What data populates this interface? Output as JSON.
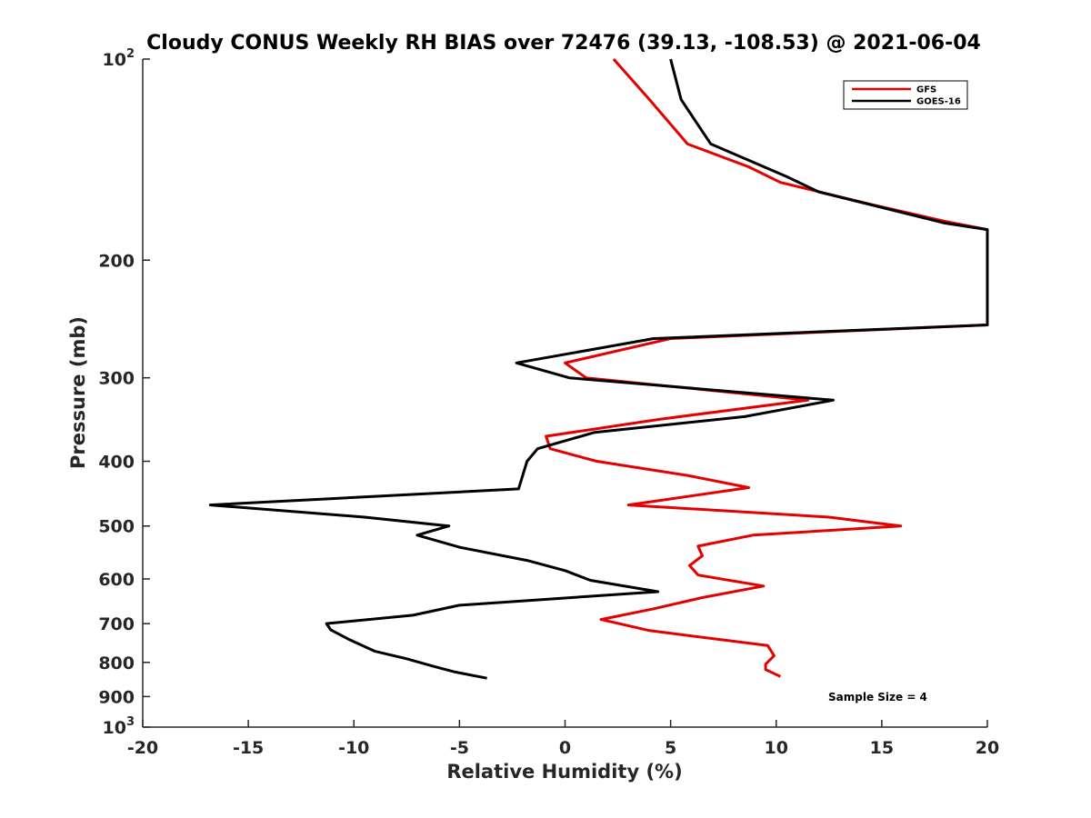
{
  "chart_data": {
    "type": "line",
    "title": "Cloudy CONUS Weekly RH BIAS over 72476 (39.13, -108.53) @ 2021-06-04",
    "xlabel": "Relative Humidity (%)",
    "ylabel": "Pressure (mb)",
    "xlim": [
      -20,
      20
    ],
    "ylim": [
      100,
      1000
    ],
    "yscale": "log",
    "y_inverted": true,
    "x_ticks": [
      -20,
      -15,
      -10,
      -5,
      0,
      5,
      10,
      15,
      20
    ],
    "x_tick_labels": [
      "-20",
      "-15",
      "-10",
      "-5",
      "0",
      "5",
      "10",
      "15",
      "20"
    ],
    "y_ticks": [
      100,
      200,
      300,
      400,
      500,
      600,
      700,
      800,
      900,
      1000
    ],
    "y_tick_labels": [
      {
        "base": "10",
        "exp": "2"
      },
      {
        "base": "200",
        "exp": ""
      },
      {
        "base": "300",
        "exp": ""
      },
      {
        "base": "400",
        "exp": ""
      },
      {
        "base": "500",
        "exp": ""
      },
      {
        "base": "600",
        "exp": ""
      },
      {
        "base": "700",
        "exp": ""
      },
      {
        "base": "800",
        "exp": ""
      },
      {
        "base": "900",
        "exp": ""
      },
      {
        "base": "10",
        "exp": "3"
      }
    ],
    "legend_position": "top-right",
    "annotation": "Sample Size = 4",
    "series": [
      {
        "name": "GFS",
        "color": "#e50000",
        "points": [
          [
            2.3,
            100
          ],
          [
            4.0,
            115
          ],
          [
            5.8,
            134
          ],
          [
            8.7,
            145
          ],
          [
            10.2,
            153
          ],
          [
            14.5,
            165
          ],
          [
            18.0,
            175
          ],
          [
            20.0,
            180
          ],
          [
            20.0,
            250
          ],
          [
            5.0,
            262
          ],
          [
            0.0,
            285
          ],
          [
            1.0,
            300
          ],
          [
            11.5,
            324
          ],
          [
            4.5,
            346
          ],
          [
            -0.9,
            367
          ],
          [
            -0.7,
            383
          ],
          [
            1.5,
            400
          ],
          [
            5.8,
            420
          ],
          [
            8.7,
            438
          ],
          [
            3.0,
            465
          ],
          [
            12.5,
            485
          ],
          [
            15.9,
            500
          ],
          [
            8.9,
            516
          ],
          [
            6.3,
            536
          ],
          [
            6.5,
            554
          ],
          [
            5.9,
            573
          ],
          [
            6.3,
            592
          ],
          [
            9.4,
            615
          ],
          [
            6.5,
            640
          ],
          [
            4.2,
            665
          ],
          [
            1.7,
            690
          ],
          [
            4.0,
            717
          ],
          [
            9.6,
            755
          ],
          [
            9.9,
            782
          ],
          [
            9.5,
            805
          ],
          [
            9.5,
            820
          ],
          [
            10.2,
            840
          ]
        ]
      },
      {
        "name": "GOES-16",
        "color": "#000000",
        "points": [
          [
            5.0,
            100
          ],
          [
            5.5,
            115
          ],
          [
            6.9,
            134
          ],
          [
            10.5,
            150
          ],
          [
            12.0,
            158
          ],
          [
            18.0,
            176
          ],
          [
            20.0,
            180
          ],
          [
            20.0,
            250
          ],
          [
            4.2,
            262
          ],
          [
            -2.3,
            285
          ],
          [
            0.2,
            300
          ],
          [
            12.7,
            324
          ],
          [
            8.5,
            343
          ],
          [
            1.4,
            362
          ],
          [
            -1.3,
            383
          ],
          [
            -1.8,
            400
          ],
          [
            -2.2,
            440
          ],
          [
            -16.8,
            465
          ],
          [
            -9.5,
            485
          ],
          [
            -5.5,
            500
          ],
          [
            -7.0,
            516
          ],
          [
            -5.0,
            538
          ],
          [
            -1.8,
            563
          ],
          [
            0.0,
            583
          ],
          [
            1.2,
            603
          ],
          [
            4.4,
            627
          ],
          [
            -5.0,
            657
          ],
          [
            -7.2,
            680
          ],
          [
            -11.3,
            700
          ],
          [
            -11.1,
            715
          ],
          [
            -10.2,
            740
          ],
          [
            -9.0,
            770
          ],
          [
            -7.5,
            790
          ],
          [
            -6.3,
            810
          ],
          [
            -5.2,
            827
          ],
          [
            -3.7,
            845
          ]
        ]
      }
    ]
  }
}
